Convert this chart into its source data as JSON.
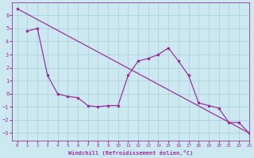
{
  "line1_x": [
    0,
    23
  ],
  "line1_y": [
    6.5,
    -3.0
  ],
  "line2_x": [
    1,
    2,
    3,
    4,
    5,
    6,
    7,
    8,
    9,
    10,
    11,
    12,
    13,
    14,
    15,
    16,
    17,
    18,
    19,
    20,
    21,
    22,
    23
  ],
  "line2_y": [
    4.8,
    5.0,
    1.4,
    0.0,
    -0.2,
    -0.3,
    -0.9,
    -1.0,
    -0.9,
    -0.9,
    1.4,
    2.5,
    2.7,
    3.0,
    3.5,
    2.5,
    1.4,
    -0.7,
    -0.9,
    -1.1,
    -2.2,
    -2.2,
    -3.0
  ],
  "line_color": "#993399",
  "bg_color": "#cce8f0",
  "grid_color": "#aaccdd",
  "xlabel": "Windchill (Refroidissement éolien,°C)",
  "xlim": [
    -0.5,
    23
  ],
  "ylim": [
    -3.6,
    7.0
  ],
  "yticks": [
    -3,
    -2,
    -1,
    0,
    1,
    2,
    3,
    4,
    5,
    6
  ],
  "xticks": [
    0,
    1,
    2,
    3,
    4,
    5,
    6,
    7,
    8,
    9,
    10,
    11,
    12,
    13,
    14,
    15,
    16,
    17,
    18,
    19,
    20,
    21,
    22,
    23
  ]
}
